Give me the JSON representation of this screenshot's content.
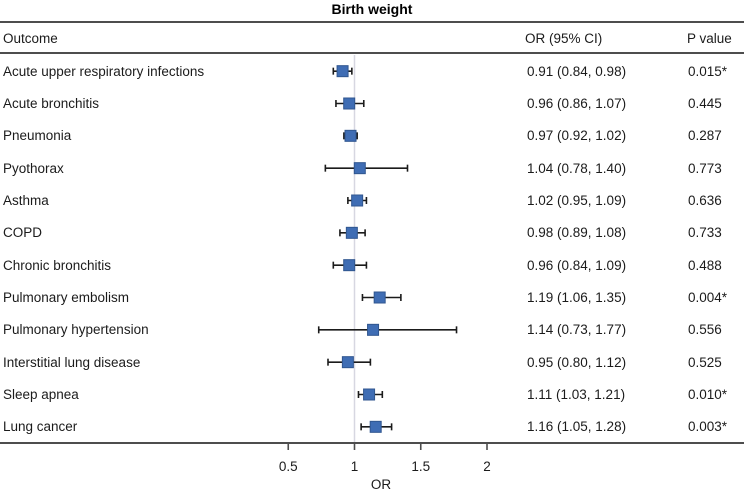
{
  "title": "Birth weight",
  "header": {
    "outcome": "Outcome",
    "or_ci": "OR (95% CI)",
    "p_value": "P value"
  },
  "colors": {
    "marker_fill": "#3f6db4",
    "marker_stroke": "#30568f",
    "ci_line": "#1b1b1b",
    "ref_line": "#d7d7e1",
    "rule": "#4d4d4d"
  },
  "chart_data": {
    "type": "forest",
    "title": "Birth weight",
    "xlabel": "OR",
    "x_ticks": [
      0.5,
      1,
      1.5,
      2
    ],
    "x_tick_labels": [
      "0.5",
      "1",
      "1.5",
      "2"
    ],
    "x_scale": "linear",
    "ref_line": 1,
    "xlim_drawn": [
      0.4,
      2.4
    ],
    "legend_position": "none",
    "grid": false,
    "rows": [
      {
        "outcome": "Acute upper respiratory infections",
        "or": 0.91,
        "ci_low": 0.84,
        "ci_high": 0.98,
        "or_ci_label": "0.91 (0.84, 0.98)",
        "p_value": "0.015*"
      },
      {
        "outcome": "Acute bronchitis",
        "or": 0.96,
        "ci_low": 0.86,
        "ci_high": 1.07,
        "or_ci_label": "0.96 (0.86, 1.07)",
        "p_value": "0.445"
      },
      {
        "outcome": "Pneumonia",
        "or": 0.97,
        "ci_low": 0.92,
        "ci_high": 1.02,
        "or_ci_label": "0.97 (0.92, 1.02)",
        "p_value": "0.287"
      },
      {
        "outcome": "Pyothorax",
        "or": 1.04,
        "ci_low": 0.78,
        "ci_high": 1.4,
        "or_ci_label": "1.04 (0.78, 1.40)",
        "p_value": "0.773"
      },
      {
        "outcome": "Asthma",
        "or": 1.02,
        "ci_low": 0.95,
        "ci_high": 1.09,
        "or_ci_label": "1.02 (0.95, 1.09)",
        "p_value": "0.636"
      },
      {
        "outcome": "COPD",
        "or": 0.98,
        "ci_low": 0.89,
        "ci_high": 1.08,
        "or_ci_label": "0.98 (0.89, 1.08)",
        "p_value": "0.733"
      },
      {
        "outcome": "Chronic bronchitis",
        "or": 0.96,
        "ci_low": 0.84,
        "ci_high": 1.09,
        "or_ci_label": "0.96 (0.84, 1.09)",
        "p_value": "0.488"
      },
      {
        "outcome": "Pulmonary embolism",
        "or": 1.19,
        "ci_low": 1.06,
        "ci_high": 1.35,
        "or_ci_label": "1.19 (1.06, 1.35)",
        "p_value": "0.004*"
      },
      {
        "outcome": "Pulmonary hypertension",
        "or": 1.14,
        "ci_low": 0.73,
        "ci_high": 1.77,
        "or_ci_label": "1.14 (0.73, 1.77)",
        "p_value": "0.556"
      },
      {
        "outcome": "Interstitial lung disease",
        "or": 0.95,
        "ci_low": 0.8,
        "ci_high": 1.12,
        "or_ci_label": "0.95 (0.80, 1.12)",
        "p_value": "0.525"
      },
      {
        "outcome": "Sleep apnea",
        "or": 1.11,
        "ci_low": 1.03,
        "ci_high": 1.21,
        "or_ci_label": "1.11 (1.03, 1.21)",
        "p_value": "0.010*"
      },
      {
        "outcome": "Lung cancer",
        "or": 1.16,
        "ci_low": 1.05,
        "ci_high": 1.28,
        "or_ci_label": "1.16 (1.05, 1.28)",
        "p_value": "0.003*"
      }
    ]
  }
}
